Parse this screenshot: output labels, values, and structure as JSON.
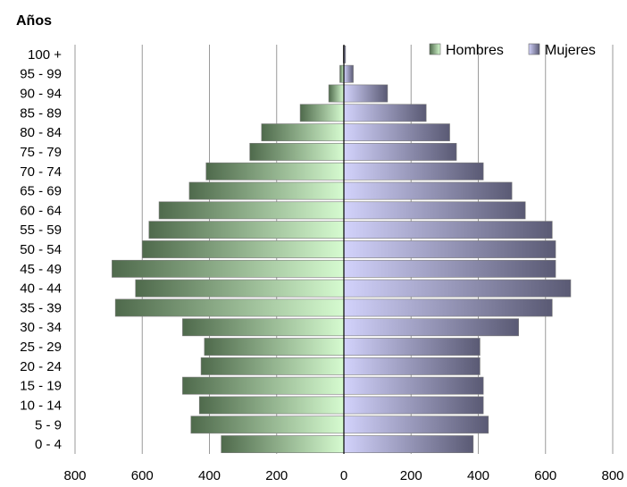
{
  "chart_data": {
    "type": "bar",
    "orientation": "horizontal",
    "subtype": "population-pyramid",
    "ylabel": "Años",
    "xlabel": "",
    "xlim": [
      -800,
      800
    ],
    "x_ticks": [
      -800,
      -600,
      -400,
      -200,
      0,
      200,
      400,
      600,
      800
    ],
    "x_tick_labels": [
      "800",
      "600",
      "400",
      "200",
      "0",
      "200",
      "400",
      "600",
      "800"
    ],
    "grid": "vertical",
    "legend_position": "top-right",
    "categories": [
      "0 - 4",
      "5 - 9",
      "10 - 14",
      "15 - 19",
      "20 - 24",
      "25 - 29",
      "30 - 34",
      "35 - 39",
      "40 - 44",
      "45 - 49",
      "50 - 54",
      "55 - 59",
      "60 - 64",
      "65 - 69",
      "70 - 74",
      "75 - 79",
      "80 - 84",
      "85 - 89",
      "90 - 94",
      "95 - 99",
      "100 +"
    ],
    "series": [
      {
        "name": "Hombres",
        "side": "left",
        "color_light": "#d6fbd0",
        "color_dark": "#4f6a4c",
        "values": [
          365,
          455,
          430,
          480,
          425,
          415,
          480,
          680,
          620,
          690,
          600,
          580,
          550,
          460,
          410,
          280,
          245,
          130,
          45,
          12,
          2
        ]
      },
      {
        "name": "Mujeres",
        "side": "right",
        "color_light": "#d2d2fb",
        "color_dark": "#5a5a74",
        "values": [
          385,
          430,
          415,
          415,
          405,
          405,
          520,
          620,
          675,
          630,
          630,
          620,
          540,
          500,
          415,
          335,
          315,
          245,
          130,
          28,
          5
        ]
      }
    ]
  }
}
